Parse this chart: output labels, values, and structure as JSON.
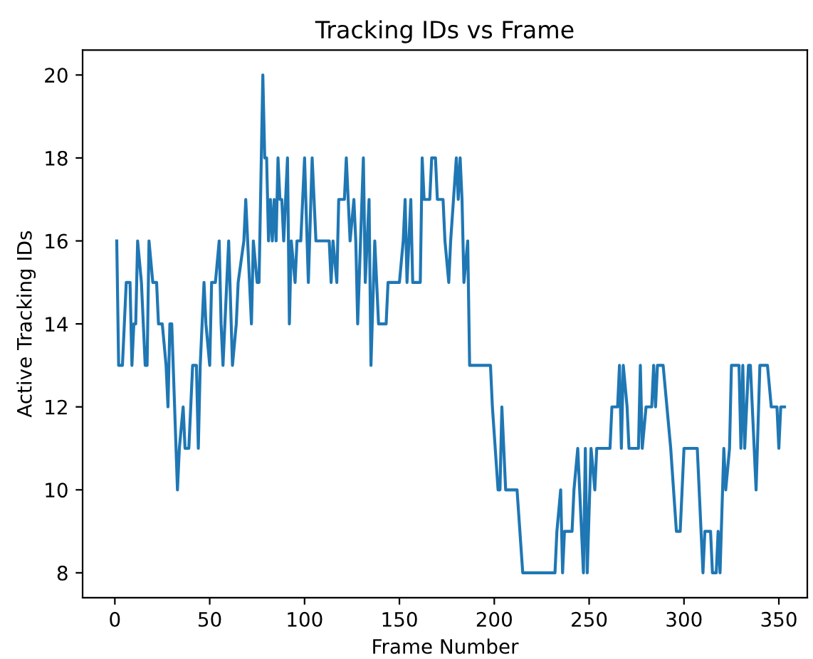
{
  "chart_data": {
    "type": "line",
    "title": "Tracking IDs vs Frame",
    "xlabel": "Frame Number",
    "ylabel": "Active Tracking IDs",
    "series": [
      {
        "color": "#1f77b4",
        "x": [
          1,
          2,
          4,
          6,
          8,
          9,
          10,
          11,
          12,
          14,
          16,
          17,
          18,
          20,
          22,
          23,
          25,
          27,
          28,
          29,
          30,
          33,
          34,
          36,
          37,
          39,
          41,
          43,
          44,
          45,
          47,
          48,
          50,
          51,
          53,
          55,
          56,
          57,
          59,
          60,
          62,
          64,
          65,
          68,
          69,
          72,
          73,
          75,
          76,
          78,
          79,
          80,
          81,
          82,
          83,
          84,
          85,
          86,
          87,
          88,
          89,
          91,
          92,
          93,
          95,
          96,
          98,
          100,
          102,
          104,
          106,
          113,
          114,
          115,
          117,
          118,
          121,
          122,
          123,
          124,
          126,
          127,
          128,
          131,
          132,
          134,
          135,
          137,
          139,
          143,
          144,
          150,
          152,
          153,
          154,
          156,
          157,
          161,
          162,
          163,
          166,
          167,
          169,
          170,
          173,
          174,
          176,
          177,
          180,
          181,
          182,
          183,
          184,
          186,
          187,
          198,
          199,
          202,
          203,
          204,
          206,
          212,
          215,
          232,
          233,
          235,
          236,
          237,
          241,
          242,
          244,
          247,
          248,
          249,
          251,
          253,
          254,
          261,
          262,
          265,
          266,
          267,
          268,
          270,
          271,
          276,
          277,
          278,
          280,
          283,
          284,
          285,
          286,
          289,
          291,
          293,
          296,
          298,
          299,
          300,
          307,
          310,
          311,
          314,
          315,
          317,
          318,
          319,
          321,
          322,
          324,
          325,
          329,
          330,
          331,
          332,
          334,
          335,
          338,
          340,
          344,
          346,
          349,
          350,
          351,
          353
        ],
        "values": [
          16,
          13,
          13,
          15,
          15,
          13,
          14,
          14,
          16,
          15,
          13,
          13,
          16,
          15,
          15,
          14,
          14,
          13,
          12,
          14,
          14,
          10,
          11,
          12,
          11,
          11,
          13,
          13,
          11,
          13,
          15,
          14,
          13,
          15,
          15,
          16,
          14,
          13,
          15,
          16,
          13,
          14,
          15,
          16,
          17,
          14,
          16,
          15,
          15,
          20,
          18,
          18,
          16,
          17,
          16,
          17,
          16,
          18,
          17,
          17,
          16,
          18,
          14,
          16,
          15,
          16,
          16,
          18,
          15,
          18,
          16,
          16,
          15,
          16,
          15,
          17,
          17,
          18,
          17,
          16,
          17,
          16,
          14,
          18,
          15,
          17,
          13,
          16,
          14,
          14,
          15,
          15,
          16,
          17,
          15,
          17,
          15,
          15,
          18,
          17,
          17,
          18,
          18,
          17,
          17,
          16,
          15,
          16,
          18,
          17,
          18,
          17,
          15,
          16,
          13,
          13,
          12,
          10,
          10,
          12,
          10,
          10,
          8,
          8,
          9,
          10,
          8,
          9,
          9,
          10,
          11,
          8,
          11,
          8,
          11,
          10,
          11,
          11,
          12,
          12,
          13,
          11,
          13,
          12,
          11,
          11,
          13,
          11,
          12,
          12,
          13,
          12,
          13,
          13,
          12,
          11,
          9,
          9,
          10,
          11,
          11,
          8,
          9,
          9,
          8,
          8,
          9,
          8,
          11,
          10,
          11,
          13,
          13,
          11,
          13,
          11,
          13,
          13,
          10,
          13,
          13,
          12,
          12,
          11,
          12,
          12
        ]
      }
    ],
    "xlim": [
      -17,
      365
    ],
    "ylim": [
      7.4,
      20.6
    ],
    "xticks": [
      0,
      50,
      100,
      150,
      200,
      250,
      300,
      350
    ],
    "yticks": [
      8,
      10,
      12,
      14,
      16,
      18,
      20
    ],
    "grid": false,
    "legend": false
  }
}
